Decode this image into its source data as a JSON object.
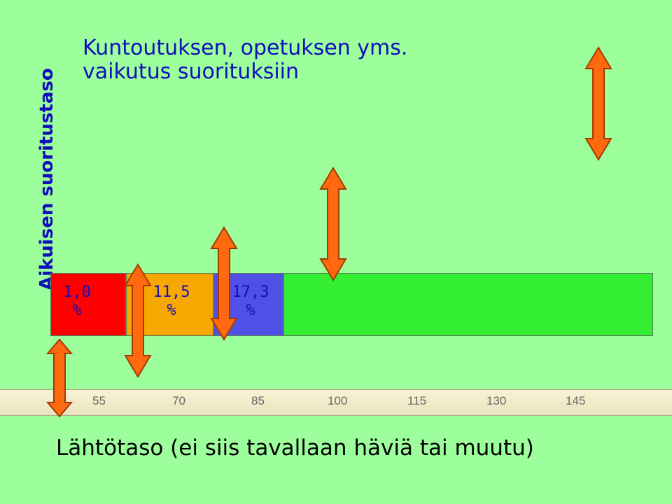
{
  "title": "Kuntoutuksen, opetuksen yms.\nvaikutus suorituksiin",
  "y_label": "Aikuisen suoritustaso",
  "footer": "Lähtötaso (ei siis tavallaan häviä tai muutu)",
  "colors": {
    "background": "#9cff9c",
    "segment_red": "#ff0000",
    "segment_orange": "#f6a800",
    "segment_blue": "#5050e6",
    "segment_green": "#33ee33",
    "arrow": "#ff6a10",
    "text_blue": "#1010b8"
  },
  "chart_data": {
    "type": "bar",
    "orientation": "horizontal-stacked",
    "segments": [
      {
        "label": "1,0\n%",
        "value": 1.0,
        "color": "#ff0000"
      },
      {
        "label": "11,5\n%",
        "value": 11.5,
        "color": "#f6a800"
      },
      {
        "label": "17,3\n%",
        "value": 17.3,
        "color": "#5050e6"
      },
      {
        "label": "",
        "color": "#33ee33"
      }
    ],
    "x_ticks": [
      "55",
      "70",
      "85",
      "100",
      "115",
      "130",
      "145"
    ],
    "arrows": 5
  }
}
